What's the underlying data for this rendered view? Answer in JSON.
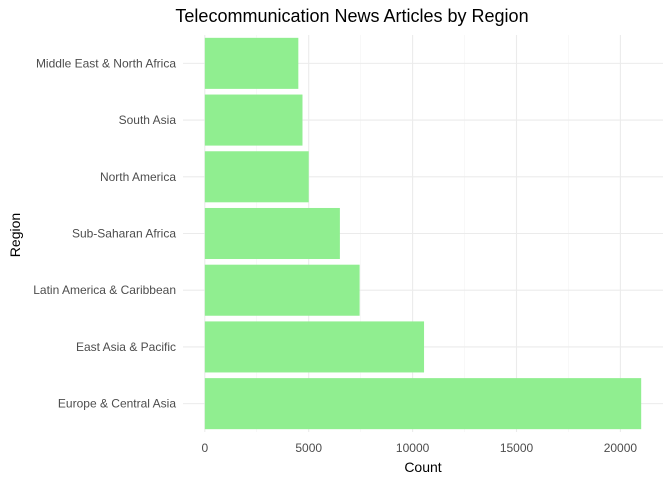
{
  "chart_data": {
    "type": "bar",
    "orientation": "horizontal",
    "title": "Telecommunication News Articles by Region",
    "xlabel": "Count",
    "ylabel": "Region",
    "categories": [
      "Europe & Central Asia",
      "East Asia & Pacific",
      "Latin America & Caribbean",
      "Sub-Saharan Africa",
      "North America",
      "South Asia",
      "Middle East & North Africa"
    ],
    "values": [
      21000,
      10550,
      7450,
      6500,
      5000,
      4700,
      4500
    ],
    "xlim": [
      0,
      21000
    ],
    "xticks": [
      0,
      5000,
      10000,
      15000,
      20000
    ],
    "bar_color": "#90ee90",
    "grid": true,
    "legend": "none"
  }
}
